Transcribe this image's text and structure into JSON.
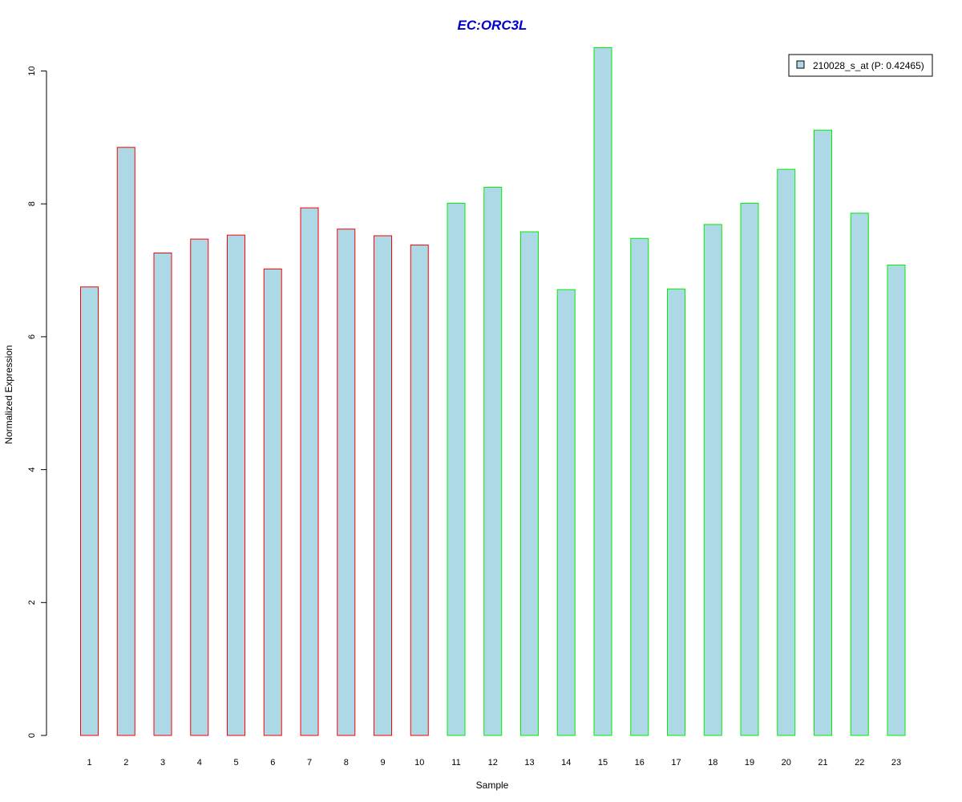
{
  "chart_data": {
    "type": "bar",
    "title": "EC:ORC3L",
    "xlabel": "Sample",
    "ylabel": "Normalized Expression",
    "categories": [
      "1",
      "2",
      "3",
      "4",
      "5",
      "6",
      "7",
      "8",
      "9",
      "10",
      "11",
      "12",
      "13",
      "14",
      "15",
      "16",
      "17",
      "18",
      "19",
      "20",
      "21",
      "22",
      "23"
    ],
    "series": [
      {
        "name": "210028_s_at (P: 0.42465)",
        "values": [
          6.75,
          8.85,
          7.26,
          7.47,
          7.53,
          7.02,
          7.94,
          7.62,
          7.52,
          7.38,
          8.01,
          8.25,
          7.58,
          6.71,
          10.35,
          7.48,
          6.72,
          7.69,
          8.01,
          8.52,
          9.11,
          7.86,
          7.08
        ]
      }
    ],
    "groups": [
      "red",
      "red",
      "red",
      "red",
      "red",
      "red",
      "red",
      "red",
      "red",
      "red",
      "green",
      "green",
      "green",
      "green",
      "green",
      "green",
      "green",
      "green",
      "green",
      "green",
      "green",
      "green",
      "green"
    ],
    "yticks": [
      0,
      2,
      4,
      6,
      8,
      10
    ],
    "ylim": [
      0,
      10.35
    ],
    "grid": false,
    "legend_position": "top-right",
    "colors": {
      "title": "#0000cc",
      "bar_fill": "#add8e6",
      "red_border": "#ff0000",
      "green_border": "#00ee00",
      "axis": "#000000"
    }
  }
}
